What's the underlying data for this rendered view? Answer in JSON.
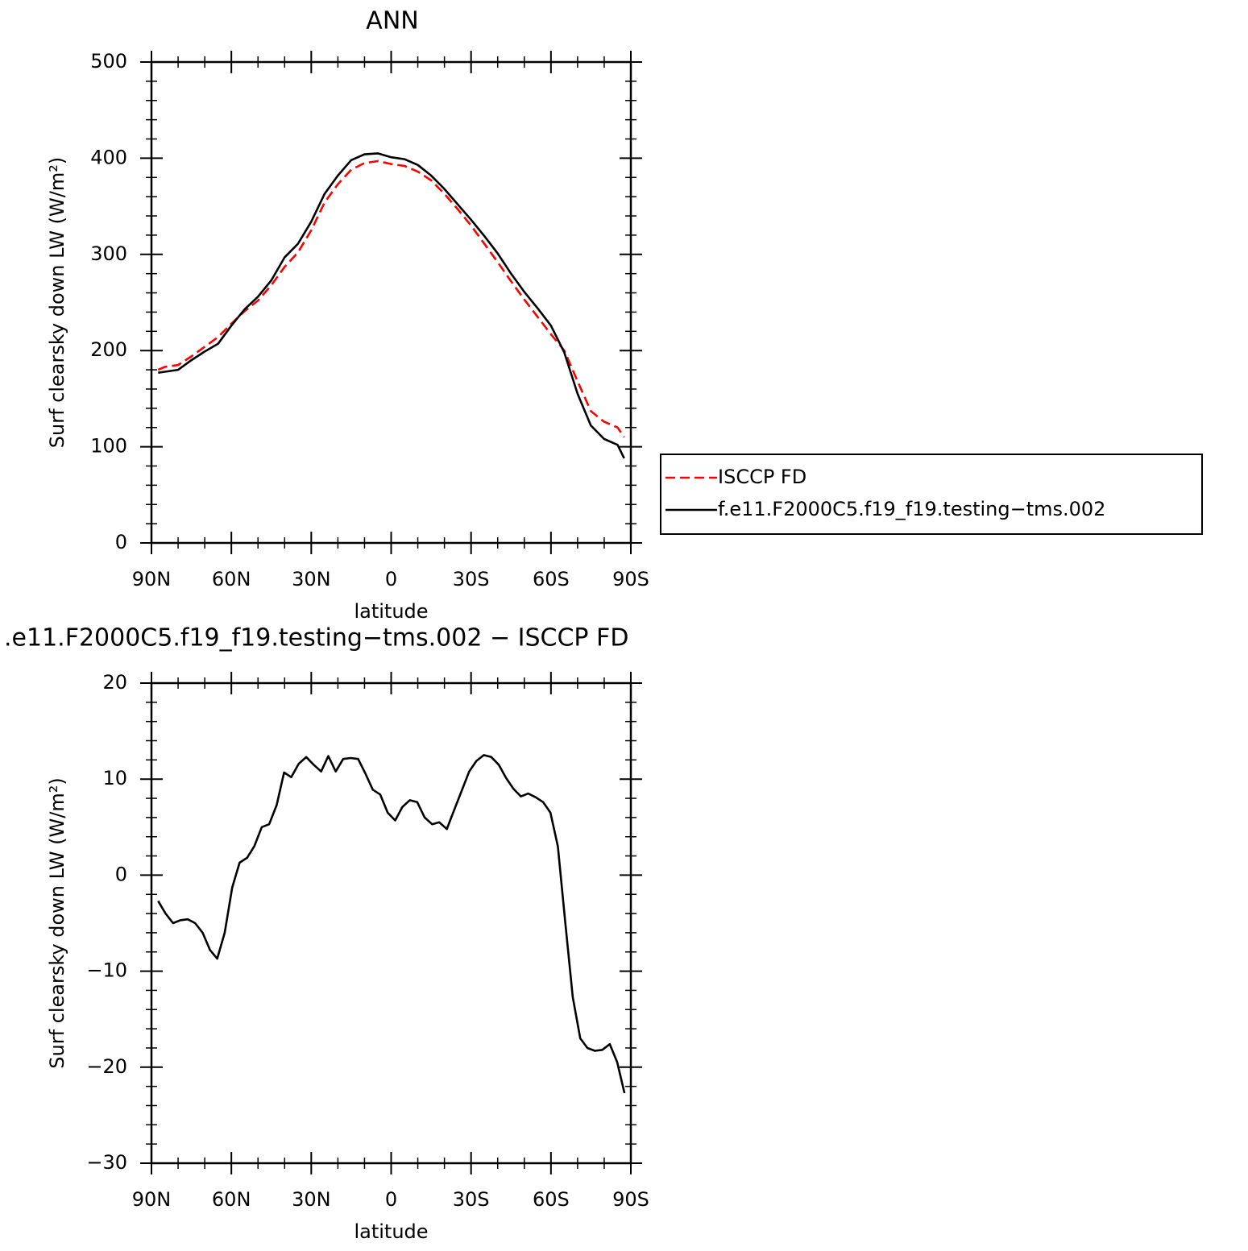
{
  "chart_data": [
    {
      "type": "line",
      "title": "ANN",
      "xlabel": "latitude",
      "ylabel": "Surf clearsky down LW (W/m²)",
      "x": [
        87.5,
        85,
        80,
        75,
        70,
        65,
        60,
        55,
        50,
        45,
        40,
        35,
        30,
        25,
        20,
        15,
        10,
        5,
        0,
        -5,
        -10,
        -15,
        -20,
        -25,
        -30,
        -35,
        -40,
        -45,
        -50,
        -55,
        -60,
        -65,
        -70,
        -75,
        -80,
        -85,
        -87.5
      ],
      "series": [
        {
          "name": "ISCCP FD",
          "color": "#ff0000",
          "dash": true,
          "values": [
            180,
            183,
            185,
            194,
            204,
            214,
            228,
            241,
            252,
            268,
            287,
            302,
            325,
            354,
            373,
            388,
            395,
            397,
            394,
            392,
            386,
            377,
            363,
            347,
            330,
            311,
            292,
            272,
            253,
            235,
            217,
            200,
            168,
            137,
            126,
            120,
            110
          ]
        },
        {
          "name": "f.e11.F2000C5.f19_f19.testing−tms.002",
          "color": "#000000",
          "dash": false,
          "values": [
            177,
            178,
            180,
            190,
            199,
            207,
            226,
            243,
            256,
            273,
            297,
            311,
            334,
            363,
            382,
            398,
            404,
            405,
            401,
            399,
            393,
            382,
            368,
            352,
            336,
            319,
            301,
            280,
            261,
            244,
            226,
            198,
            155,
            122,
            108,
            102,
            88
          ]
        }
      ],
      "xlim": [
        90,
        -90
      ],
      "xticks": [
        {
          "value": 90,
          "label": "90N"
        },
        {
          "value": 60,
          "label": "60N"
        },
        {
          "value": 30,
          "label": "30N"
        },
        0,
        {
          "value": -30,
          "label": "30S"
        },
        {
          "value": -60,
          "label": "60S"
        },
        {
          "value": -90,
          "label": "90S"
        }
      ],
      "ylim": [
        0,
        500
      ],
      "yticks": [
        0,
        100,
        200,
        300,
        400,
        500
      ],
      "legend": "right"
    },
    {
      "type": "line",
      "title": ".e11.F2000C5.f19_f19.testing−tms.002 − ISCCP FD",
      "xlabel": "latitude",
      "ylabel": "Surf clearsky down LW (W/m²)",
      "x": [
        87.5,
        84.7,
        81.9,
        79.2,
        76.4,
        73.6,
        70.8,
        68.0,
        65.3,
        62.5,
        59.7,
        56.9,
        54.1,
        51.4,
        48.6,
        45.8,
        43.0,
        40.2,
        37.5,
        34.7,
        31.9,
        29.1,
        26.3,
        23.6,
        20.8,
        18.0,
        15.2,
        12.4,
        9.7,
        6.9,
        4.1,
        1.3,
        -1.5,
        -4.2,
        -7.0,
        -9.8,
        -12.6,
        -15.4,
        -18.1,
        -20.9,
        -23.7,
        -26.5,
        -29.3,
        -32.0,
        -34.8,
        -37.6,
        -40.4,
        -43.2,
        -45.9,
        -48.7,
        -51.5,
        -54.3,
        -57.1,
        -59.8,
        -62.6,
        -65.4,
        -68.2,
        -71.0,
        -73.7,
        -76.5,
        -79.3,
        -82.1,
        -84.9,
        -87.6
      ],
      "series": [
        {
          "name": null,
          "color": "#000000",
          "dash": false,
          "values": [
            -2.7,
            -4,
            -5,
            -4.7,
            -4.6,
            -5,
            -6,
            -7.8,
            -8.7,
            -6,
            -1.3,
            1.3,
            1.8,
            3,
            5,
            5.3,
            7.3,
            10.7,
            10.2,
            11.6,
            12.3,
            11.5,
            10.8,
            12.4,
            10.8,
            12.1,
            12.2,
            12.1,
            10.6,
            8.9,
            8.4,
            6.5,
            5.7,
            7.1,
            7.8,
            7.6,
            6,
            5.3,
            5.5,
            4.8,
            6.8,
            8.8,
            10.8,
            11.9,
            12.5,
            12.3,
            11.5,
            10.1,
            9,
            8.2,
            8.5,
            8.1,
            7.6,
            6.5,
            3,
            -5,
            -12.7,
            -17,
            -18,
            -18.3,
            -18.2,
            -17.6,
            -19.5,
            -22.7
          ]
        }
      ],
      "xlim": [
        90,
        -90
      ],
      "xticks": [
        {
          "value": 90,
          "label": "90N"
        },
        {
          "value": 60,
          "label": "60N"
        },
        {
          "value": 30,
          "label": "30N"
        },
        0,
        {
          "value": -30,
          "label": "30S"
        },
        {
          "value": -60,
          "label": "60S"
        },
        {
          "value": -90,
          "label": "90S"
        }
      ],
      "ylim": [
        -30,
        20
      ],
      "yticks": [
        {
          "value": -30,
          "label": "−30"
        },
        {
          "value": -20,
          "label": "−20"
        },
        {
          "value": -10,
          "label": "−10"
        },
        0,
        10,
        20
      ]
    }
  ]
}
